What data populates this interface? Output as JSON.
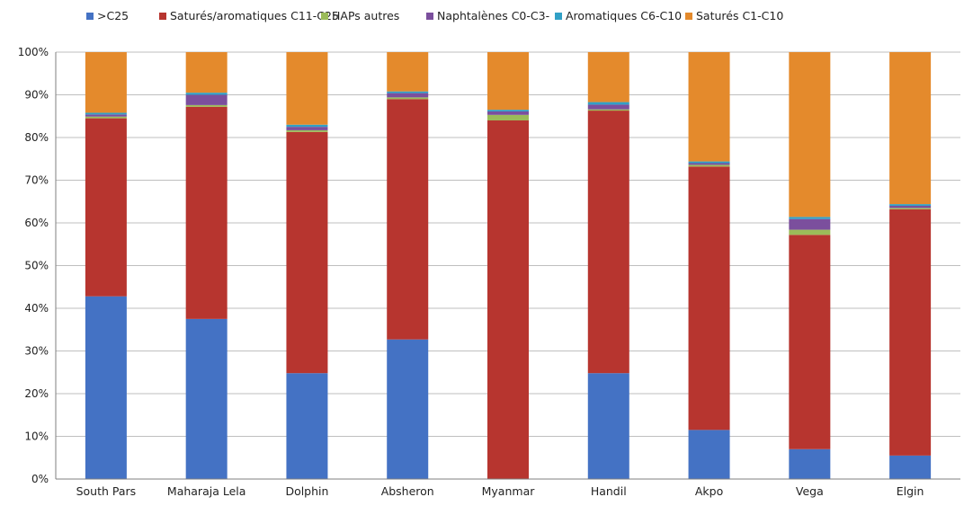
{
  "chart_data": {
    "type": "bar",
    "stacked": true,
    "percent": true,
    "categories": [
      "South Pars",
      "Maharaja Lela",
      "Dolphin",
      "Absheron",
      "Myanmar",
      "Handil",
      "Akpo",
      "Vega",
      "Elgin"
    ],
    "y_ticks": [
      "0%",
      "10%",
      "20%",
      "30%",
      "40%",
      "50%",
      "60%",
      "70%",
      "80%",
      "90%",
      "100%"
    ],
    "ylim": [
      0,
      100
    ],
    "grid": true,
    "legend_position": "top",
    "series": [
      {
        "name": ">C25",
        "color": "#4472c4",
        "values": [
          42.8,
          37.5,
          24.8,
          32.7,
          0,
          24.8,
          11.5,
          7.0,
          5.5
        ]
      },
      {
        "name": "Saturés/aromatiques C11-C25",
        "color": "#b7352f",
        "values": [
          41.7,
          49.7,
          56.5,
          56.3,
          84.0,
          61.5,
          61.7,
          50.2,
          57.7
        ]
      },
      {
        "name": "HAPs autres",
        "color": "#9bbb59",
        "values": [
          0.4,
          0.4,
          0.4,
          0.4,
          1.3,
          0.3,
          0.4,
          1.2,
          0.3
        ]
      },
      {
        "name": "Naphtalènes C0-C3-",
        "color": "#7b4f9d",
        "values": [
          0.5,
          2.4,
          0.8,
          1.0,
          0.8,
          1.1,
          0.4,
          2.5,
          0.5
        ]
      },
      {
        "name": "Aromatiques C6-C10",
        "color": "#31a0c6",
        "values": [
          0.4,
          0.5,
          0.5,
          0.4,
          0.4,
          0.6,
          0.4,
          0.5,
          0.4
        ]
      },
      {
        "name": "Saturés C1-C10",
        "color": "#e48a2c",
        "values": [
          14.2,
          9.5,
          17.0,
          9.2,
          13.5,
          11.7,
          25.6,
          38.6,
          35.6
        ]
      }
    ]
  }
}
